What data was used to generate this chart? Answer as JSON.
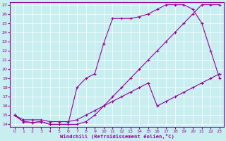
{
  "xlabel": "Windchill (Refroidissement éolien,°C)",
  "bg_color": "#c8eef0",
  "line_color": "#990099",
  "xlim": [
    -0.5,
    23.5
  ],
  "ylim": [
    13.7,
    27.3
  ],
  "xticks": [
    0,
    1,
    2,
    3,
    4,
    5,
    6,
    7,
    8,
    9,
    10,
    11,
    12,
    13,
    14,
    15,
    16,
    17,
    18,
    19,
    20,
    21,
    22,
    23
  ],
  "yticks": [
    14,
    15,
    16,
    17,
    18,
    19,
    20,
    21,
    22,
    23,
    24,
    25,
    26,
    27
  ],
  "line1_x": [
    0,
    1,
    2,
    3,
    4,
    5,
    6,
    7,
    8,
    9,
    10,
    11,
    12,
    13,
    14,
    15,
    16,
    17,
    18,
    19,
    20,
    21,
    22,
    23
  ],
  "line1_y": [
    15,
    14.3,
    14.2,
    14.3,
    14.0,
    14.0,
    14.0,
    14.0,
    14.3,
    15.0,
    16.0,
    17.0,
    18.0,
    19.0,
    20.0,
    21.0,
    22.0,
    23.0,
    24.0,
    25.0,
    26.0,
    27.0,
    27.0,
    27.0
  ],
  "line2_x": [
    0,
    1,
    2,
    3,
    4,
    5,
    6,
    7,
    8,
    9,
    10,
    11,
    12,
    13,
    14,
    15,
    16,
    17,
    18,
    19,
    20,
    21,
    22,
    23
  ],
  "line2_y": [
    15,
    14.3,
    14.2,
    14.3,
    14.0,
    14.0,
    14.0,
    18.0,
    19.0,
    19.5,
    22.8,
    25.5,
    25.5,
    25.5,
    25.7,
    26.0,
    26.5,
    27.0,
    27.0,
    27.0,
    26.5,
    25.0,
    22.0,
    19.0
  ],
  "line3_x": [
    0,
    1,
    2,
    3,
    4,
    5,
    6,
    7,
    8,
    9,
    10,
    11,
    12,
    13,
    14,
    15,
    16,
    17,
    18,
    19,
    20,
    21,
    22,
    23
  ],
  "line3_y": [
    15,
    14.5,
    14.5,
    14.5,
    14.3,
    14.3,
    14.3,
    14.5,
    15.0,
    15.5,
    16.0,
    16.5,
    17.0,
    17.5,
    18.0,
    18.5,
    16.0,
    16.5,
    17.0,
    17.5,
    18.0,
    18.5,
    19.0,
    19.5
  ]
}
